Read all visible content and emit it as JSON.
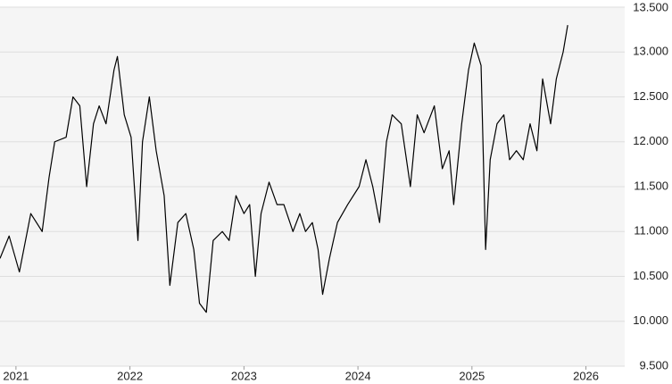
{
  "chart_data": {
    "type": "line",
    "x": [
      2020.86,
      2020.94,
      2021.03,
      2021.13,
      2021.23,
      2021.29,
      2021.34,
      2021.44,
      2021.5,
      2021.56,
      2021.62,
      2021.68,
      2021.73,
      2021.79,
      2021.86,
      2021.89,
      2021.95,
      2022.01,
      2022.07,
      2022.11,
      2022.17,
      2022.23,
      2022.3,
      2022.35,
      2022.42,
      2022.49,
      2022.56,
      2022.61,
      2022.67,
      2022.73,
      2022.81,
      2022.87,
      2022.93,
      2023.0,
      2023.05,
      2023.1,
      2023.15,
      2023.22,
      2023.29,
      2023.35,
      2023.43,
      2023.49,
      2023.54,
      2023.6,
      2023.65,
      2023.69,
      2023.75,
      2023.82,
      2023.91,
      2024.01,
      2024.07,
      2024.13,
      2024.19,
      2024.25,
      2024.3,
      2024.38,
      2024.46,
      2024.52,
      2024.58,
      2024.67,
      2024.74,
      2024.8,
      2024.84,
      2024.91,
      2024.97,
      2025.02,
      2025.08,
      2025.12,
      2025.16,
      2025.22,
      2025.28,
      2025.33,
      2025.39,
      2025.45,
      2025.51,
      2025.57,
      2025.62,
      2025.69,
      2025.74,
      2025.8,
      2025.84
    ],
    "series": [
      {
        "color": "#000000",
        "values": [
          10700,
          10950,
          10550,
          11200,
          11000,
          11600,
          12000,
          12050,
          12500,
          12400,
          11500,
          12200,
          12400,
          12200,
          12800,
          12950,
          12300,
          12050,
          10900,
          12000,
          12500,
          11900,
          11400,
          10400,
          11100,
          11200,
          10800,
          10200,
          10100,
          10900,
          11000,
          10900,
          11400,
          11200,
          11300,
          10500,
          11200,
          11550,
          11300,
          11300,
          11000,
          11200,
          11000,
          11100,
          10800,
          10300,
          10700,
          11100,
          11300,
          11500,
          11800,
          11500,
          11100,
          12000,
          12300,
          12200,
          11500,
          12300,
          12100,
          12400,
          11700,
          11900,
          11300,
          12200,
          12800,
          13100,
          12850,
          10800,
          11800,
          12200,
          12300,
          11800,
          11900,
          11800,
          12200,
          11900,
          12700,
          12200,
          12700,
          13000,
          13300
        ]
      }
    ],
    "xlim": [
      2020.86,
      2026.34
    ],
    "xticks": [
      2021,
      2022,
      2023,
      2024,
      2025,
      2026
    ],
    "ylim": [
      9500,
      13500
    ],
    "yticks": [
      {
        "value": 9500,
        "label": "9.500"
      },
      {
        "value": 10000,
        "label": "10.000"
      },
      {
        "value": 10500,
        "label": "10.500"
      },
      {
        "value": 11000,
        "label": "11.000"
      },
      {
        "value": 11500,
        "label": "11.500"
      },
      {
        "value": 12000,
        "label": "12.000"
      },
      {
        "value": 12500,
        "label": "12.500"
      },
      {
        "value": 13000,
        "label": "13.000"
      },
      {
        "value": 13500,
        "label": "13.500"
      }
    ],
    "grid": true
  }
}
